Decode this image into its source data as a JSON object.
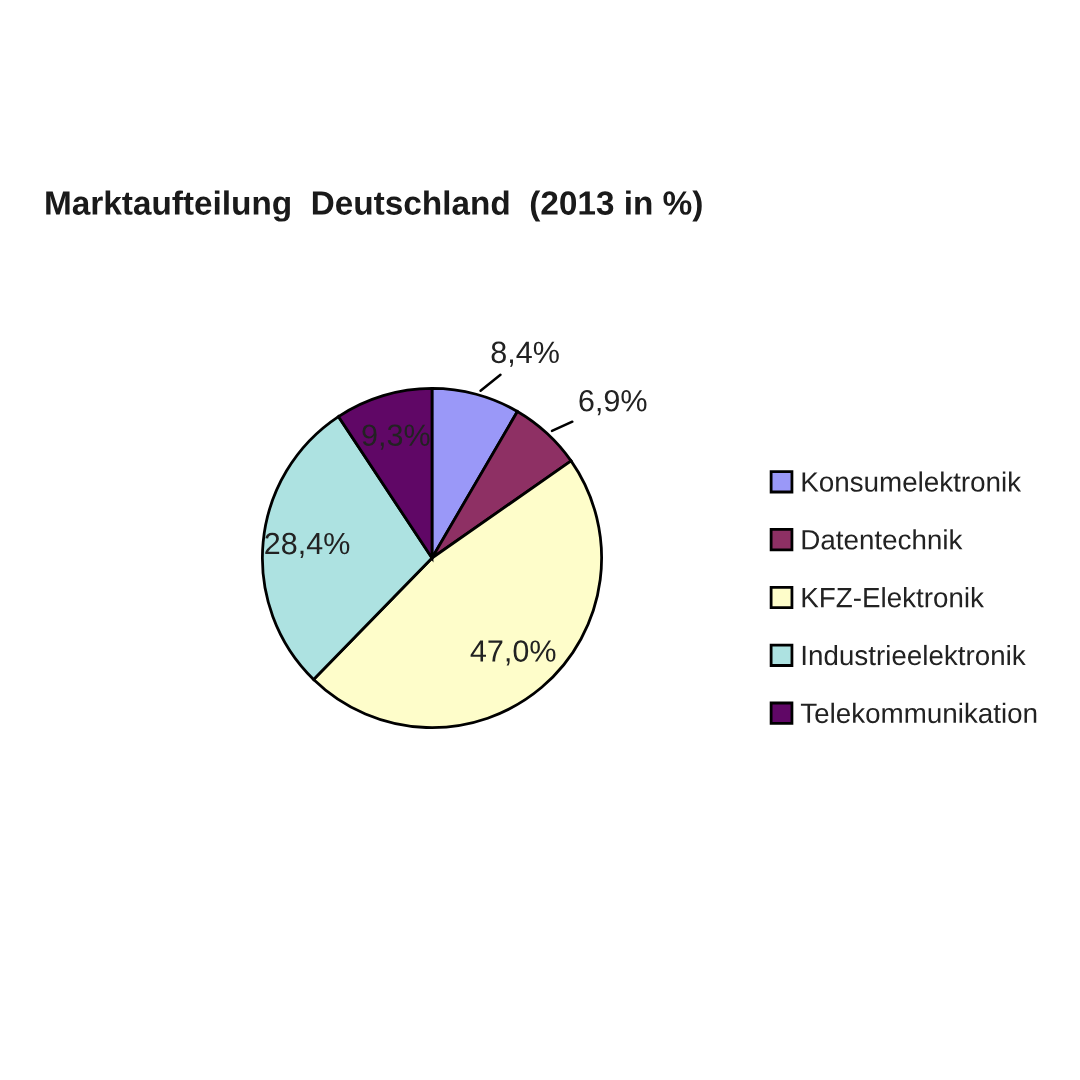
{
  "chart_data": {
    "type": "pie",
    "title": "Marktaufteilung  Deutschland  (2013 in %)",
    "categories": [
      "Konsumelektronik",
      "Datentechnik",
      "KFZ-Elektronik",
      "Industrieelektronik",
      "Telekommunikation"
    ],
    "values": [
      8.4,
      6.9,
      47.0,
      28.4,
      9.3
    ],
    "colors": [
      "#9a98f8",
      "#8e3064",
      "#fefdca",
      "#ade2e1",
      "#600766"
    ],
    "value_labels": [
      "8,4%",
      "6,9%",
      "47,0%",
      "28,4%",
      "9,3%"
    ],
    "legend": "right"
  }
}
